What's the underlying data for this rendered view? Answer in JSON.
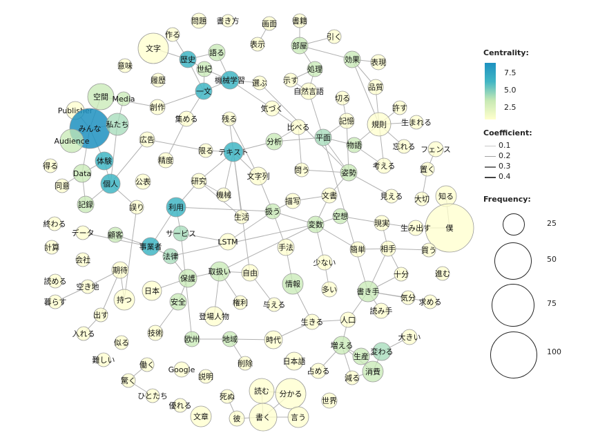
{
  "legend": {
    "centrality_title": "Centrality:",
    "centrality_ticks": [
      "7.5",
      "5.0",
      "2.5"
    ],
    "coefficient_title": "Coefficient:",
    "coefficient_items": [
      "0.1",
      "0.2",
      "0.3",
      "0.4"
    ],
    "frequency_title": "Frequency:",
    "frequency_items": [
      "25",
      "50",
      "75",
      "100"
    ]
  },
  "colors": {
    "low": "#ffffcc",
    "mid": "#c7e9b4",
    "high": "#41b6c4",
    "top": "#1d91c0",
    "edge": "#b0b0b0"
  },
  "nodes": [
    {
      "id": "mondai",
      "label": "問題"
    },
    {
      "id": "kakikata",
      "label": "書き方"
    },
    {
      "id": "gamen",
      "label": "画面"
    },
    {
      "id": "shoseki",
      "label": "書籍"
    },
    {
      "id": "tsukuru",
      "label": "作る"
    },
    {
      "id": "moji",
      "label": "文字"
    },
    {
      "id": "hyouji",
      "label": "表示"
    },
    {
      "id": "heya",
      "label": "部屋"
    },
    {
      "id": "hiku",
      "label": "引く"
    },
    {
      "id": "rekishi",
      "label": "歴史"
    },
    {
      "id": "kataru",
      "label": "語る"
    },
    {
      "id": "kouka",
      "label": "効果"
    },
    {
      "id": "hyougen",
      "label": "表現"
    },
    {
      "id": "imi",
      "label": "意味"
    },
    {
      "id": "seiki",
      "label": "世紀"
    },
    {
      "id": "kikai_g",
      "label": "機械学習"
    },
    {
      "id": "shori",
      "label": "処理"
    },
    {
      "id": "rireki",
      "label": "履歴"
    },
    {
      "id": "erabu",
      "label": "選ぶ"
    },
    {
      "id": "shimesu",
      "label": "示す"
    },
    {
      "id": "shizen",
      "label": "自然言語"
    },
    {
      "id": "hinshitsu",
      "label": "品質"
    },
    {
      "id": "kuukan",
      "label": "空間"
    },
    {
      "id": "media",
      "label": "Media"
    },
    {
      "id": "ichibun",
      "label": "一文"
    },
    {
      "id": "kiru",
      "label": "切る"
    },
    {
      "id": "sousaku",
      "label": "創作"
    },
    {
      "id": "kizuku",
      "label": "気づく"
    },
    {
      "id": "yurusu",
      "label": "許す"
    },
    {
      "id": "publisher",
      "label": "Publisher"
    },
    {
      "id": "minna",
      "label": "みんな"
    },
    {
      "id": "watashitachi",
      "label": "私たち"
    },
    {
      "id": "atsumeru",
      "label": "集める"
    },
    {
      "id": "nokoru",
      "label": "残る"
    },
    {
      "id": "kioku",
      "label": "記憶"
    },
    {
      "id": "kisoku",
      "label": "規則"
    },
    {
      "id": "umareru",
      "label": "生まれる"
    },
    {
      "id": "kuraberu",
      "label": "比べる"
    },
    {
      "id": "audience",
      "label": "Audience"
    },
    {
      "id": "koukoku",
      "label": "広告"
    },
    {
      "id": "bunseki",
      "label": "分析"
    },
    {
      "id": "heimen",
      "label": "平面"
    },
    {
      "id": "text",
      "label": "テキスト"
    },
    {
      "id": "kagiru",
      "label": "限る"
    },
    {
      "id": "monogatari",
      "label": "物語"
    },
    {
      "id": "wasureru",
      "label": "忘れる"
    },
    {
      "id": "fence",
      "label": "フェンス"
    },
    {
      "id": "taiken",
      "label": "体験"
    },
    {
      "id": "seido",
      "label": "精度"
    },
    {
      "id": "mojiretsu",
      "label": "文字列"
    },
    {
      "id": "kangaeru",
      "label": "考える"
    },
    {
      "id": "eru",
      "label": "得る"
    },
    {
      "id": "data",
      "label": "Data"
    },
    {
      "id": "kenkyuu",
      "label": "研究"
    },
    {
      "id": "tou",
      "label": "問う"
    },
    {
      "id": "shisei",
      "label": "姿勢"
    },
    {
      "id": "oku",
      "label": "置く"
    },
    {
      "id": "douI",
      "label": "同意"
    },
    {
      "id": "kojin",
      "label": "個人"
    },
    {
      "id": "kouhyou",
      "label": "公表"
    },
    {
      "id": "kikai",
      "label": "機械"
    },
    {
      "id": "byousha",
      "label": "描写"
    },
    {
      "id": "bunsho",
      "label": "文書"
    },
    {
      "id": "mieru",
      "label": "見える"
    },
    {
      "id": "shiru",
      "label": "知る"
    },
    {
      "id": "kiroku",
      "label": "記録"
    },
    {
      "id": "ayamari",
      "label": "誤り"
    },
    {
      "id": "riyou",
      "label": "利用"
    },
    {
      "id": "taisetsu",
      "label": "大切"
    },
    {
      "id": "owaru",
      "label": "終わる"
    },
    {
      "id": "seikatsu",
      "label": "生活"
    },
    {
      "id": "atsukau",
      "label": "扱う"
    },
    {
      "id": "kuusou",
      "label": "空想"
    },
    {
      "id": "genjitsu",
      "label": "現実"
    },
    {
      "id": "boku",
      "label": "僕"
    },
    {
      "id": "umidasu",
      "label": "生み出す"
    },
    {
      "id": "datawa",
      "label": "データ"
    },
    {
      "id": "service",
      "label": "サービス"
    },
    {
      "id": "hensu",
      "label": "変数"
    },
    {
      "id": "kokyaku",
      "label": "顧客"
    },
    {
      "id": "keisan",
      "label": "計算"
    },
    {
      "id": "jigyousha",
      "label": "事業者"
    },
    {
      "id": "lstm",
      "label": "LSTM"
    },
    {
      "id": "kantan",
      "label": "簡単"
    },
    {
      "id": "aite",
      "label": "相手"
    },
    {
      "id": "shuhou",
      "label": "手法"
    },
    {
      "id": "kau",
      "label": "買う"
    },
    {
      "id": "kaisha",
      "label": "会社"
    },
    {
      "id": "houritsu",
      "label": "法律"
    },
    {
      "id": "sukunai",
      "label": "少ない"
    },
    {
      "id": "susumu",
      "label": "進む"
    },
    {
      "id": "kitai",
      "label": "期待"
    },
    {
      "id": "toriatsukai",
      "label": "取扱い"
    },
    {
      "id": "jiyuu",
      "label": "自由"
    },
    {
      "id": "yomeru",
      "label": "読める"
    },
    {
      "id": "akichi",
      "label": "空き地"
    },
    {
      "id": "hogo",
      "label": "保護"
    },
    {
      "id": "jouhou",
      "label": "情報"
    },
    {
      "id": "juubun",
      "label": "十分"
    },
    {
      "id": "kurasu",
      "label": "暮らす"
    },
    {
      "id": "motsu",
      "label": "持つ"
    },
    {
      "id": "nihon",
      "label": "日本"
    },
    {
      "id": "ooi",
      "label": "多い"
    },
    {
      "id": "kakite",
      "label": "書き手"
    },
    {
      "id": "kibun",
      "label": "気分"
    },
    {
      "id": "motomeru",
      "label": "求める"
    },
    {
      "id": "kenri",
      "label": "権利"
    },
    {
      "id": "anzen",
      "label": "安全"
    },
    {
      "id": "ataeru",
      "label": "与える"
    },
    {
      "id": "yomite",
      "label": "読み手"
    },
    {
      "id": "dasu",
      "label": "出す"
    },
    {
      "id": "tojoujinbutsu",
      "label": "登場人物"
    },
    {
      "id": "jinkou",
      "label": "人口"
    },
    {
      "id": "ikiru",
      "label": "生きる"
    },
    {
      "id": "ireru",
      "label": "入れる"
    },
    {
      "id": "gijutsu",
      "label": "技術"
    },
    {
      "id": "oushuu",
      "label": "欧州"
    },
    {
      "id": "chiiki",
      "label": "地域"
    },
    {
      "id": "jidai",
      "label": "時代"
    },
    {
      "id": "ookii",
      "label": "大きい"
    },
    {
      "id": "niru",
      "label": "似る"
    },
    {
      "id": "fueru",
      "label": "増える"
    },
    {
      "id": "kawaru",
      "label": "変わる"
    },
    {
      "id": "muzukashii",
      "label": "難しい"
    },
    {
      "id": "hataraku",
      "label": "働く"
    },
    {
      "id": "sakujo",
      "label": "削除"
    },
    {
      "id": "nihongo",
      "label": "日本語"
    },
    {
      "id": "seisan",
      "label": "生産"
    },
    {
      "id": "google",
      "label": "Google"
    },
    {
      "id": "setsumei",
      "label": "説明"
    },
    {
      "id": "shimeru",
      "label": "占める"
    },
    {
      "id": "heru",
      "label": "減る"
    },
    {
      "id": "shouhi",
      "label": "消費"
    },
    {
      "id": "odoroku",
      "label": "驚く"
    },
    {
      "id": "yomu",
      "label": "読む"
    },
    {
      "id": "wakaru",
      "label": "分かる"
    },
    {
      "id": "hitotachi",
      "label": "ひとたち"
    },
    {
      "id": "shinu",
      "label": "死ぬ"
    },
    {
      "id": "sekai",
      "label": "世界"
    },
    {
      "id": "sugureru",
      "label": "優れる"
    },
    {
      "id": "bunshou",
      "label": "文章"
    },
    {
      "id": "kare",
      "label": "彼"
    },
    {
      "id": "kaku",
      "label": "書く"
    },
    {
      "id": "iu",
      "label": "言う"
    }
  ]
}
